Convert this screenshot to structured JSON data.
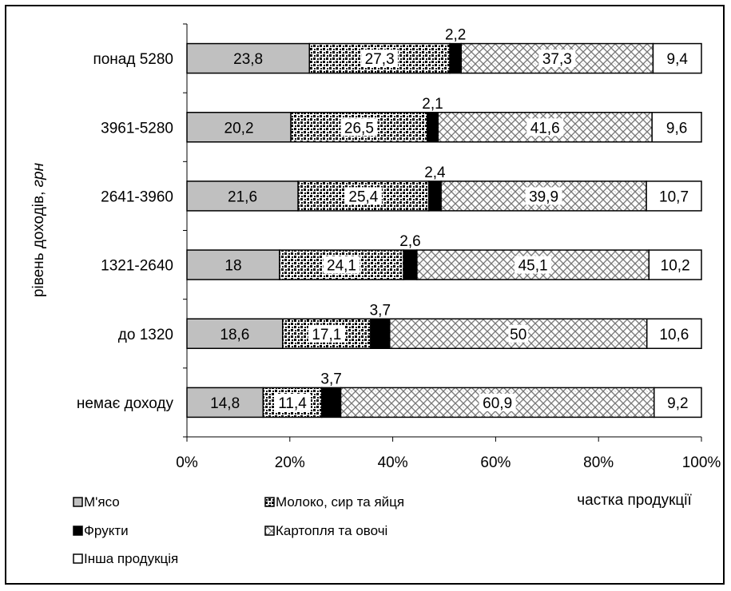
{
  "chart_data": {
    "type": "bar",
    "orientation": "horizontal",
    "stacked": true,
    "percent": true,
    "categories": [
      "понад 5280",
      "3961-5280",
      "2641-3960",
      "1321-2640",
      "до 1320",
      "немає доходу"
    ],
    "series": [
      {
        "name": "М'ясо",
        "values": [
          23.8,
          20.2,
          21.6,
          18,
          18.6,
          14.8
        ],
        "labels": [
          "23,8",
          "20,2",
          "21,6",
          "18",
          "18,6",
          "14,8"
        ],
        "color": "#c0c0c0",
        "pattern": "solid"
      },
      {
        "name": "Молоко, сир та яйця",
        "values": [
          27.3,
          26.5,
          25.4,
          24.1,
          17.1,
          11.4
        ],
        "labels": [
          "27,3",
          "26,5",
          "25,4",
          "24,1",
          "17,1",
          "11,4"
        ],
        "color": "#000000",
        "pattern": "dots"
      },
      {
        "name": "Фрукти",
        "values": [
          2.2,
          2.1,
          2.4,
          2.6,
          3.7,
          3.7
        ],
        "labels": [
          "2,2",
          "2,1",
          "2,4",
          "2,6",
          "3,7",
          "3,7"
        ],
        "color": "#000000",
        "pattern": "solid"
      },
      {
        "name": "Картопля та овочі",
        "values": [
          37.3,
          41.6,
          39.9,
          45.1,
          50,
          60.9
        ],
        "labels": [
          "37,3",
          "41,6",
          "39,9",
          "45,1",
          "50",
          "60,9"
        ],
        "color": "#808080",
        "pattern": "weave"
      },
      {
        "name": "Інша продукція",
        "values": [
          9.4,
          9.6,
          10.7,
          10.2,
          10.6,
          9.2
        ],
        "labels": [
          "9,4",
          "9,6",
          "10,7",
          "10,2",
          "10,6",
          "9,2"
        ],
        "color": "#ffffff",
        "pattern": "solid"
      }
    ],
    "xlim": [
      0,
      100
    ],
    "xticks": [
      "0%",
      "20%",
      "40%",
      "60%",
      "80%",
      "100%"
    ],
    "xlabel": "частка продукції",
    "ylabel": "рівень доходів, ",
    "ylabel_unit": "грн",
    "grid": false,
    "legend_position": "bottom-left"
  }
}
